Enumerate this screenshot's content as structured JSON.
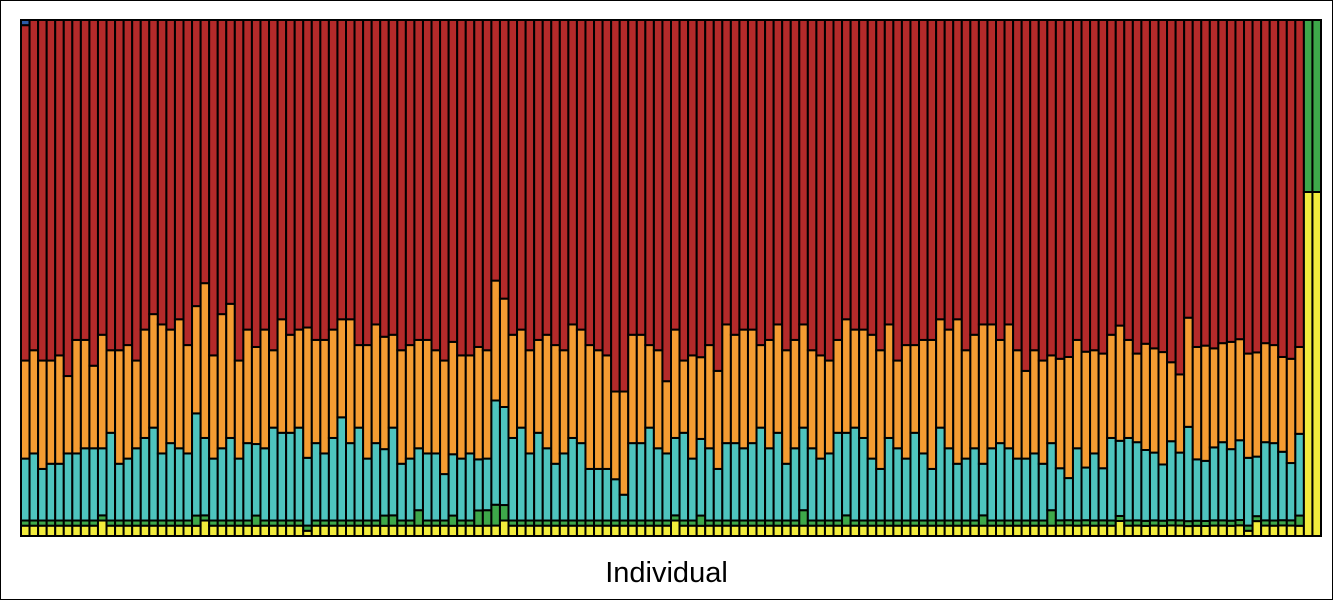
{
  "chart_data": {
    "type": "bar",
    "stacked": true,
    "normalized": true,
    "xlabel": "Individual",
    "ylabel": "",
    "ylim": [
      0,
      1
    ],
    "n_individuals": 0,
    "cluster_order": [
      "yellow",
      "green",
      "teal",
      "orange",
      "red",
      "blue"
    ],
    "colors": {
      "yellow": "#F2EC3C",
      "green": "#3EA84A",
      "teal": "#4EC4BE",
      "orange": "#F49C32",
      "red": "#B42A2A",
      "blue": "#2C5CA8",
      "outline": "#000000"
    },
    "series": [
      {
        "name": "",
        "color_key": "yellow",
        "values": [
          0.02,
          0.02,
          0.02,
          0.02,
          0.02,
          0.02,
          0.02,
          0.02,
          0.02,
          0.03,
          0.02,
          0.02,
          0.02,
          0.02,
          0.02,
          0.02,
          0.02,
          0.02,
          0.02,
          0.02,
          0.02,
          0.03,
          0.02,
          0.02,
          0.02,
          0.02,
          0.02,
          0.02,
          0.02,
          0.02,
          0.02,
          0.02,
          0.02,
          0.01,
          0.02,
          0.02,
          0.02,
          0.02,
          0.02,
          0.02,
          0.02,
          0.02,
          0.02,
          0.02,
          0.02,
          0.02,
          0.02,
          0.02,
          0.02,
          0.02,
          0.02,
          0.02,
          0.02,
          0.02,
          0.02,
          0.02,
          0.03,
          0.02,
          0.02,
          0.02,
          0.02,
          0.02,
          0.02,
          0.02,
          0.02,
          0.02,
          0.02,
          0.02,
          0.02,
          0.02,
          0.02,
          0.02,
          0.02,
          0.02,
          0.02,
          0.02,
          0.03,
          0.02,
          0.02,
          0.02,
          0.02,
          0.02,
          0.02,
          0.02,
          0.02,
          0.02,
          0.02,
          0.02,
          0.02,
          0.02,
          0.02,
          0.02,
          0.02,
          0.02,
          0.02,
          0.02,
          0.02,
          0.02,
          0.02,
          0.02,
          0.02,
          0.02,
          0.02,
          0.02,
          0.02,
          0.02,
          0.02,
          0.02,
          0.02,
          0.02,
          0.02,
          0.02,
          0.02,
          0.02,
          0.02,
          0.02,
          0.02,
          0.02,
          0.02,
          0.02,
          0.02,
          0.02,
          0.02,
          0.02,
          0.02,
          0.02,
          0.02,
          0.02,
          0.03,
          0.02,
          0.02,
          0.02,
          0.02,
          0.02,
          0.02,
          0.02,
          0.02,
          0.02,
          0.02,
          0.02,
          0.02,
          0.02,
          0.02,
          0.01,
          0.03,
          0.02,
          0.02,
          0.02,
          0.02,
          0.02,
          0.02,
          0.02
        ]
      },
      {
        "name": "",
        "color_key": "green",
        "values": [
          0.01,
          0.01,
          0.01,
          0.01,
          0.01,
          0.01,
          0.01,
          0.01,
          0.01,
          0.01,
          0.01,
          0.01,
          0.01,
          0.01,
          0.01,
          0.01,
          0.01,
          0.01,
          0.01,
          0.01,
          0.02,
          0.01,
          0.01,
          0.01,
          0.01,
          0.01,
          0.01,
          0.02,
          0.01,
          0.01,
          0.01,
          0.01,
          0.01,
          0.01,
          0.01,
          0.01,
          0.01,
          0.01,
          0.01,
          0.01,
          0.01,
          0.01,
          0.02,
          0.02,
          0.01,
          0.01,
          0.03,
          0.01,
          0.01,
          0.01,
          0.02,
          0.01,
          0.01,
          0.03,
          0.03,
          0.04,
          0.03,
          0.01,
          0.01,
          0.01,
          0.01,
          0.01,
          0.01,
          0.01,
          0.01,
          0.01,
          0.01,
          0.01,
          0.01,
          0.01,
          0.01,
          0.01,
          0.01,
          0.01,
          0.01,
          0.01,
          0.01,
          0.01,
          0.01,
          0.02,
          0.01,
          0.01,
          0.01,
          0.01,
          0.01,
          0.01,
          0.01,
          0.01,
          0.01,
          0.01,
          0.01,
          0.03,
          0.01,
          0.01,
          0.01,
          0.01,
          0.02,
          0.01,
          0.01,
          0.01,
          0.01,
          0.01,
          0.01,
          0.01,
          0.01,
          0.01,
          0.01,
          0.01,
          0.01,
          0.01,
          0.01,
          0.01,
          0.02,
          0.01,
          0.01,
          0.01,
          0.01,
          0.01,
          0.01,
          0.01,
          0.03,
          0.01,
          0.01,
          0.01,
          0.01,
          0.01,
          0.01,
          0.01,
          0.01,
          0.01,
          0.01,
          0.01,
          0.01,
          0.01,
          0.01,
          0.01,
          0.01,
          0.01,
          0.01,
          0.01,
          0.01,
          0.01,
          0.01,
          0.01,
          0.01,
          0.01,
          0.01,
          0.01,
          0.01,
          0.02,
          0.01,
          0.01
        ]
      },
      {
        "name": "",
        "color_key": "teal",
        "values": [
          0.12,
          0.13,
          0.1,
          0.11,
          0.11,
          0.13,
          0.13,
          0.14,
          0.14,
          0.13,
          0.17,
          0.11,
          0.12,
          0.14,
          0.16,
          0.18,
          0.13,
          0.15,
          0.14,
          0.13,
          0.2,
          0.15,
          0.12,
          0.14,
          0.16,
          0.12,
          0.15,
          0.14,
          0.14,
          0.18,
          0.17,
          0.17,
          0.18,
          0.13,
          0.15,
          0.13,
          0.16,
          0.2,
          0.15,
          0.18,
          0.12,
          0.15,
          0.13,
          0.17,
          0.11,
          0.12,
          0.12,
          0.13,
          0.13,
          0.09,
          0.12,
          0.12,
          0.13,
          0.1,
          0.1,
          0.2,
          0.19,
          0.16,
          0.18,
          0.13,
          0.17,
          0.14,
          0.11,
          0.13,
          0.16,
          0.15,
          0.1,
          0.1,
          0.1,
          0.08,
          0.05,
          0.15,
          0.15,
          0.18,
          0.14,
          0.13,
          0.15,
          0.17,
          0.12,
          0.15,
          0.14,
          0.1,
          0.15,
          0.15,
          0.14,
          0.15,
          0.18,
          0.14,
          0.17,
          0.11,
          0.14,
          0.16,
          0.14,
          0.12,
          0.13,
          0.17,
          0.16,
          0.18,
          0.16,
          0.12,
          0.1,
          0.16,
          0.14,
          0.12,
          0.17,
          0.13,
          0.1,
          0.18,
          0.14,
          0.11,
          0.12,
          0.14,
          0.1,
          0.14,
          0.15,
          0.14,
          0.12,
          0.12,
          0.13,
          0.11,
          0.13,
          0.1,
          0.08,
          0.14,
          0.1,
          0.13,
          0.1,
          0.16,
          0.15,
          0.16,
          0.15,
          0.14,
          0.13,
          0.11,
          0.15,
          0.13,
          0.19,
          0.12,
          0.12,
          0.14,
          0.15,
          0.14,
          0.15,
          0.13,
          0.12,
          0.15,
          0.15,
          0.13,
          0.11,
          0.16
        ]
      },
      {
        "name": "",
        "color_key": "orange",
        "values": [
          0.19,
          0.2,
          0.21,
          0.2,
          0.21,
          0.15,
          0.22,
          0.21,
          0.16,
          0.22,
          0.16,
          0.22,
          0.22,
          0.17,
          0.21,
          0.22,
          0.25,
          0.22,
          0.25,
          0.21,
          0.21,
          0.3,
          0.2,
          0.26,
          0.26,
          0.19,
          0.22,
          0.19,
          0.23,
          0.15,
          0.22,
          0.19,
          0.19,
          0.25,
          0.2,
          0.22,
          0.21,
          0.19,
          0.24,
          0.16,
          0.22,
          0.23,
          0.22,
          0.18,
          0.22,
          0.22,
          0.21,
          0.22,
          0.2,
          0.22,
          0.22,
          0.2,
          0.19,
          0.22,
          0.21,
          0.23,
          0.21,
          0.2,
          0.19,
          0.2,
          0.18,
          0.22,
          0.23,
          0.2,
          0.22,
          0.22,
          0.24,
          0.23,
          0.22,
          0.17,
          0.2,
          0.21,
          0.21,
          0.16,
          0.19,
          0.14,
          0.21,
          0.14,
          0.2,
          0.16,
          0.2,
          0.19,
          0.23,
          0.21,
          0.23,
          0.22,
          0.16,
          0.21,
          0.21,
          0.22,
          0.21,
          0.2,
          0.19,
          0.2,
          0.18,
          0.18,
          0.22,
          0.19,
          0.21,
          0.24,
          0.23,
          0.22,
          0.17,
          0.22,
          0.17,
          0.22,
          0.25,
          0.21,
          0.23,
          0.28,
          0.21,
          0.22,
          0.27,
          0.24,
          0.2,
          0.24,
          0.21,
          0.17,
          0.2,
          0.2,
          0.17,
          0.21,
          0.23,
          0.21,
          0.22,
          0.2,
          0.22,
          0.2,
          0.23,
          0.19,
          0.17,
          0.21,
          0.2,
          0.22,
          0.15,
          0.15,
          0.22,
          0.22,
          0.23,
          0.19,
          0.19,
          0.21,
          0.19,
          0.2,
          0.21,
          0.19,
          0.19,
          0.18,
          0.2,
          0.17
        ]
      },
      {
        "name": "",
        "color_key": "red",
        "values": [
          0.65,
          0.64,
          0.66,
          0.66,
          0.65,
          0.69,
          0.62,
          0.62,
          0.67,
          0.61,
          0.64,
          0.64,
          0.63,
          0.66,
          0.6,
          0.57,
          0.59,
          0.6,
          0.58,
          0.63,
          0.56,
          0.51,
          0.65,
          0.57,
          0.55,
          0.66,
          0.6,
          0.64,
          0.6,
          0.64,
          0.58,
          0.61,
          0.6,
          0.59,
          0.62,
          0.62,
          0.6,
          0.58,
          0.58,
          0.63,
          0.63,
          0.59,
          0.62,
          0.61,
          0.64,
          0.63,
          0.62,
          0.62,
          0.64,
          0.66,
          0.63,
          0.65,
          0.65,
          0.64,
          0.64,
          0.5,
          0.54,
          0.61,
          0.6,
          0.64,
          0.62,
          0.61,
          0.63,
          0.64,
          0.59,
          0.6,
          0.63,
          0.64,
          0.65,
          0.72,
          0.72,
          0.61,
          0.61,
          0.63,
          0.64,
          0.7,
          0.6,
          0.66,
          0.65,
          0.66,
          0.63,
          0.68,
          0.59,
          0.61,
          0.6,
          0.6,
          0.63,
          0.62,
          0.59,
          0.64,
          0.62,
          0.59,
          0.64,
          0.65,
          0.66,
          0.62,
          0.58,
          0.6,
          0.6,
          0.61,
          0.64,
          0.59,
          0.66,
          0.63,
          0.63,
          0.62,
          0.62,
          0.58,
          0.6,
          0.58,
          0.64,
          0.61,
          0.59,
          0.59,
          0.62,
          0.59,
          0.64,
          0.68,
          0.64,
          0.66,
          0.65,
          0.65,
          0.64,
          0.62,
          0.63,
          0.64,
          0.64,
          0.61,
          0.61,
          0.62,
          0.64,
          0.64,
          0.63,
          0.65,
          0.65,
          0.68,
          0.6,
          0.64,
          0.65,
          0.63,
          0.62,
          0.63,
          0.6,
          0.64,
          0.67,
          0.62,
          0.63,
          0.64,
          0.65,
          0.64
        ]
      },
      {
        "name": "",
        "color_key": "blue",
        "values": [
          0.01,
          0.0,
          0.0,
          0.0,
          0.0,
          0.0,
          0.0,
          0.0,
          0.0,
          0.0,
          0.0,
          0.0,
          0.0,
          0.0,
          0.0,
          0.0,
          0.0,
          0.0,
          0.0,
          0.0,
          0.0,
          0.0,
          0.0,
          0.0,
          0.0,
          0.0,
          0.0,
          0.0,
          0.0,
          0.0,
          0.0,
          0.0,
          0.0,
          0.0,
          0.0,
          0.0,
          0.0,
          0.0,
          0.0,
          0.0,
          0.0,
          0.0,
          0.0,
          0.0,
          0.0,
          0.0,
          0.0,
          0.0,
          0.0,
          0.0,
          0.0,
          0.0,
          0.0,
          0.0,
          0.0,
          0.0,
          0.0,
          0.0,
          0.0,
          0.0,
          0.0,
          0.0,
          0.0,
          0.0,
          0.0,
          0.0,
          0.0,
          0.0,
          0.0,
          0.0,
          0.0,
          0.0,
          0.0,
          0.0,
          0.0,
          0.0,
          0.0,
          0.0,
          0.0,
          0.0,
          0.0,
          0.0,
          0.0,
          0.0,
          0.0,
          0.0,
          0.0,
          0.0,
          0.0,
          0.0,
          0.0,
          0.0,
          0.0,
          0.0,
          0.0,
          0.0,
          0.0,
          0.0,
          0.0,
          0.0,
          0.0,
          0.0,
          0.0,
          0.0,
          0.0,
          0.0,
          0.0,
          0.0,
          0.0,
          0.0,
          0.0,
          0.0,
          0.0,
          0.0,
          0.0,
          0.0,
          0.0,
          0.0,
          0.0,
          0.0,
          0.0,
          0.0,
          0.0,
          0.0,
          0.0,
          0.0,
          0.0,
          0.0,
          0.0,
          0.0,
          0.0,
          0.0,
          0.0,
          0.0,
          0.0,
          0.0,
          0.0,
          0.0,
          0.0,
          0.0,
          0.0,
          0.0,
          0.0,
          0.0,
          0.0,
          0.0,
          0.0,
          0.0,
          0.0,
          0.0
        ]
      }
    ]
  }
}
